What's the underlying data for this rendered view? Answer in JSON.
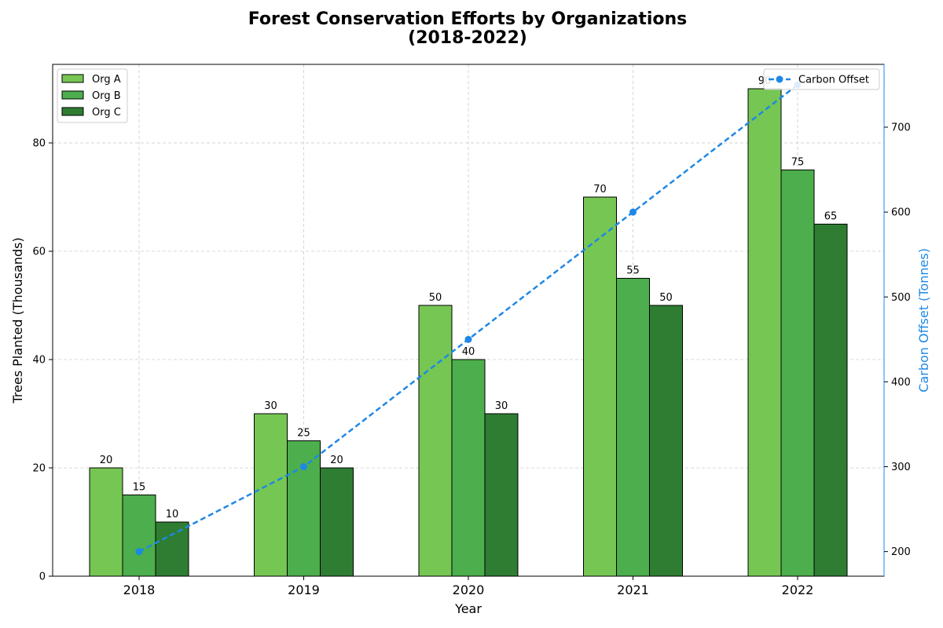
{
  "chart_data": {
    "type": "bar",
    "title_line1": "Forest Conservation Efforts by Organizations",
    "title_line2": "(2018-2022)",
    "xlabel": "Year",
    "ylabel": "Trees Planted (Thousands)",
    "y2label": "Carbon Offset (Tonnes)",
    "categories": [
      "2018",
      "2019",
      "2020",
      "2021",
      "2022"
    ],
    "ylim": [
      0,
      94.5
    ],
    "y_ticks": [
      0,
      20,
      40,
      60,
      80
    ],
    "y2lim": [
      171,
      774
    ],
    "y2_ticks": [
      200,
      300,
      400,
      500,
      600,
      700
    ],
    "grid": true,
    "legend_bars_placement": "top-left",
    "legend_line_placement": "top-right",
    "series": [
      {
        "name": "Org A",
        "values": [
          20,
          30,
          50,
          70,
          90
        ],
        "color": "#76c653"
      },
      {
        "name": "Org B",
        "values": [
          15,
          25,
          40,
          55,
          75
        ],
        "color": "#4cae4c"
      },
      {
        "name": "Org C",
        "values": [
          10,
          20,
          30,
          50,
          65
        ],
        "color": "#2e7d32"
      }
    ],
    "line_series": {
      "name": "Carbon Offset",
      "values": [
        200,
        300,
        450,
        600,
        750
      ],
      "color": "#1e88e5",
      "axis": "right"
    }
  }
}
